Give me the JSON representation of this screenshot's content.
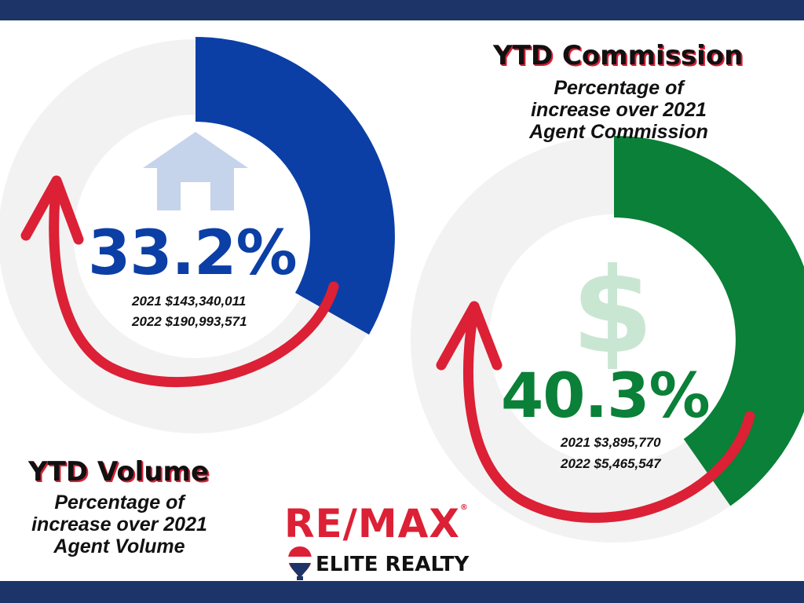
{
  "colors": {
    "navy": "#1d3468",
    "blue": "#0b3fa6",
    "green": "#0a8038",
    "red": "#dc2035",
    "ring": "#f2f2f2",
    "house": "#c5d3eb",
    "dollar": "#c9e6d3"
  },
  "volume": {
    "title": "YTD Volume",
    "subtitle": [
      "Percentage of",
      "increase over 2021",
      "Agent Volume"
    ],
    "percent": "33.2%",
    "fraction": 0.332,
    "line_2021": "2021 $143,340,011",
    "line_2022": "2022 $190,993,571",
    "icon": "house-icon"
  },
  "commission": {
    "title": "YTD Commission",
    "subtitle": [
      "Percentage of",
      "increase over 2021",
      "Agent Commission"
    ],
    "percent": "40.3%",
    "fraction": 0.403,
    "line_2021": "2021 $3,895,770",
    "line_2022": "2022 $5,465,547",
    "icon": "dollar-icon"
  },
  "brand": {
    "name": "RE/MAX",
    "office": "ELITE REALTY",
    "mark": "®"
  }
}
